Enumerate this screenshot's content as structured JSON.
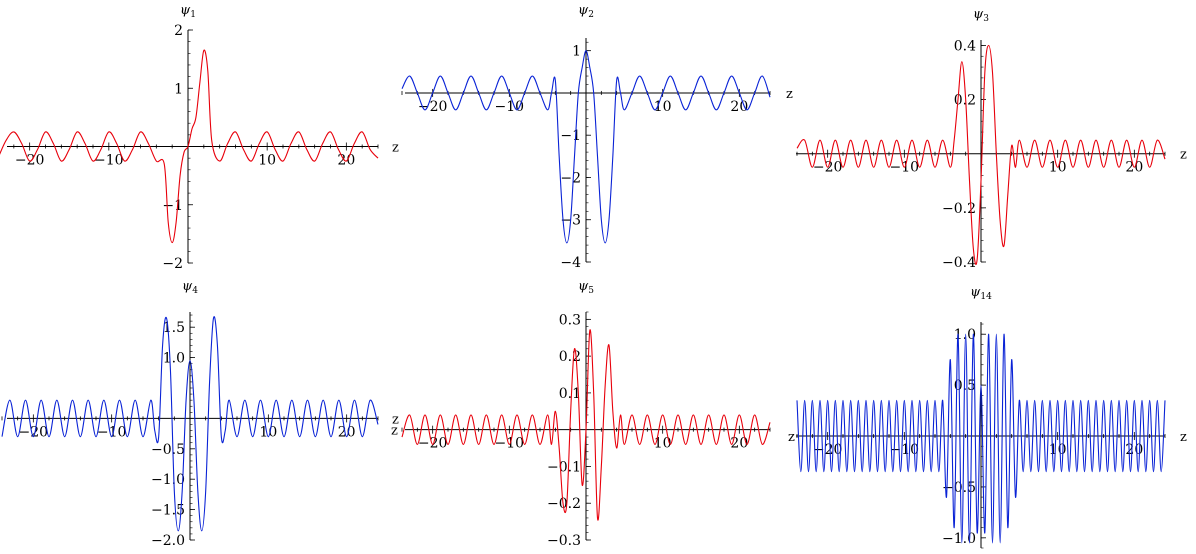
{
  "chart_data": [
    {
      "type": "line",
      "title": "ψ1",
      "xlabel": "z",
      "ylabel": "",
      "xlim": [
        -24,
        24
      ],
      "ylim": [
        -2,
        2
      ],
      "x_ticks": [
        -20,
        -10,
        10,
        20
      ],
      "x_tick_labels": [
        "−20",
        "−10",
        "10",
        "20"
      ],
      "y_ticks": [
        -2,
        -1,
        1,
        2
      ],
      "y_tick_labels": [
        "−2",
        "−1",
        "1",
        "2"
      ],
      "colors": {
        "line": "#e8000b"
      },
      "series": [
        {
          "name": "",
          "color": "#e8000b",
          "x": [
            -24,
            -23,
            -22,
            -21,
            -20,
            -19,
            -18,
            -17,
            -16,
            -15,
            -14,
            -13,
            -12,
            -11,
            -10,
            -9,
            -8,
            -7,
            -6,
            -5,
            -4,
            -3,
            -2.5,
            -2,
            -1.5,
            -1,
            -0.5,
            0,
            0.5,
            1,
            1.5,
            2,
            2.5,
            3,
            4,
            5,
            6,
            7,
            8,
            9,
            10,
            11,
            12,
            13,
            14,
            15,
            16,
            17,
            18,
            19,
            20,
            21,
            22,
            23,
            24
          ],
          "y": [
            -0.2,
            0.1,
            0.25,
            0.05,
            -0.25,
            -0.05,
            0.25,
            0.05,
            -0.25,
            -0.05,
            0.25,
            0.05,
            -0.25,
            -0.05,
            0.25,
            0.05,
            -0.25,
            -0.05,
            0.25,
            0.05,
            -0.25,
            -0.3,
            -1.3,
            -1.65,
            -1.3,
            -0.5,
            -0.1,
            0,
            0.3,
            0.5,
            1.1,
            1.65,
            1.3,
            0.1,
            -0.25,
            0.05,
            0.25,
            -0.05,
            -0.25,
            0.05,
            0.25,
            -0.05,
            -0.25,
            0.05,
            0.25,
            -0.05,
            -0.25,
            0.05,
            0.25,
            -0.05,
            -0.25,
            0.05,
            0.25,
            -0.05,
            -0.2
          ]
        }
      ]
    },
    {
      "type": "line",
      "title": "ψ2",
      "xlabel": "z",
      "ylabel": "",
      "xlim": [
        -24,
        24
      ],
      "ylim": [
        -4,
        1.3
      ],
      "x_ticks": [
        -20,
        -10,
        10,
        20
      ],
      "x_tick_labels": [
        "−20",
        "−10",
        "10",
        "20"
      ],
      "y_ticks": [
        -4,
        -3,
        -2,
        -1,
        1
      ],
      "y_tick_labels": [
        "−4",
        "−3",
        "−2",
        "−1",
        "1"
      ],
      "colors": {
        "line": "#0a23d6"
      },
      "series": [
        {
          "name": "",
          "color": "#0a23d6",
          "x": [
            -24,
            -23,
            -22,
            -21,
            -20,
            -19,
            -18,
            -17,
            -16,
            -15,
            -14,
            -13,
            -12,
            -11,
            -10,
            -9,
            -8,
            -7,
            -6,
            -5,
            -4.5,
            -4,
            -3.5,
            -3,
            -2.5,
            -2,
            -1.5,
            -1,
            -0.5,
            0,
            0.5,
            1,
            1.5,
            2,
            2.5,
            3,
            3.5,
            4,
            4.5,
            5,
            6,
            7,
            8,
            9,
            10,
            11,
            12,
            13,
            14,
            15,
            16,
            17,
            18,
            19,
            20,
            21,
            22,
            23,
            24
          ],
          "y": [
            0.1,
            0.4,
            0,
            -0.4,
            0,
            0.4,
            0,
            -0.4,
            0,
            0.4,
            0,
            -0.4,
            0,
            0.4,
            0,
            -0.4,
            0,
            0.4,
            0,
            -0.4,
            0,
            0.3,
            -1.5,
            -3,
            -3.55,
            -3,
            -1.5,
            0,
            0.6,
            1,
            0.6,
            0,
            -1.5,
            -3,
            -3.55,
            -3,
            -1.5,
            0.3,
            0,
            -0.4,
            0,
            0.4,
            0,
            -0.4,
            0,
            0.4,
            0,
            -0.4,
            0,
            0.4,
            0,
            -0.4,
            0,
            0.4,
            0,
            -0.4,
            0,
            0.4,
            -0.1
          ]
        }
      ]
    },
    {
      "type": "line",
      "title": "ψ3",
      "xlabel": "z",
      "ylabel": "",
      "xlim": [
        -24,
        24
      ],
      "ylim": [
        -0.4,
        0.42
      ],
      "x_ticks": [
        -20,
        -10,
        10,
        20
      ],
      "x_tick_labels": [
        "−20",
        "−10",
        "10",
        "20"
      ],
      "y_ticks": [
        -0.4,
        -0.2,
        0.2,
        0.4
      ],
      "y_tick_labels": [
        "−0.4",
        "−0.2",
        "0.2",
        "0.4"
      ],
      "colors": {
        "line": "#e8000b"
      },
      "series": [
        {
          "name": "",
          "color": "#e8000b",
          "x": [
            -24,
            -23,
            -22,
            -21,
            -20,
            -19,
            -18,
            -17,
            -16,
            -15,
            -14,
            -13,
            -12,
            -11,
            -10,
            -9,
            -8,
            -7,
            -6,
            -5,
            -4,
            -3.5,
            -3,
            -2.5,
            -2,
            -1.5,
            -1,
            -0.5,
            0,
            0.5,
            1,
            1.5,
            2,
            2.5,
            3,
            3.5,
            4,
            4.5,
            5,
            6,
            7,
            8,
            9,
            10,
            11,
            12,
            13,
            14,
            15,
            16,
            17,
            18,
            19,
            20,
            21,
            22,
            23,
            24
          ],
          "y": [
            0.02,
            0.05,
            -0.05,
            0.05,
            -0.05,
            0.05,
            -0.05,
            0.05,
            -0.05,
            0.05,
            -0.05,
            0.05,
            -0.05,
            0.05,
            -0.05,
            0.05,
            -0.05,
            0.05,
            -0.05,
            0.05,
            -0.05,
            0.05,
            0.2,
            0.34,
            0.2,
            -0.1,
            -0.35,
            -0.39,
            -0.1,
            0.3,
            0.4,
            0.3,
            0,
            -0.25,
            -0.34,
            -0.15,
            0.03,
            -0.05,
            0.05,
            -0.05,
            0.05,
            -0.05,
            0.05,
            -0.05,
            0.05,
            -0.05,
            0.05,
            -0.05,
            0.05,
            -0.05,
            0.05,
            -0.05,
            0.05,
            -0.05,
            0.05,
            -0.05,
            0.05,
            -0.02
          ]
        }
      ]
    },
    {
      "type": "line",
      "title": "ψ4",
      "xlabel": "z",
      "ylabel": "",
      "xlim": [
        -24,
        24
      ],
      "ylim": [
        -2,
        1.75
      ],
      "x_ticks": [
        -20,
        -10,
        10,
        20
      ],
      "x_tick_labels": [
        "−20",
        "−10",
        "10",
        "20"
      ],
      "y_ticks": [
        -2,
        -1.5,
        -1,
        -0.5,
        1,
        1.5
      ],
      "y_tick_labels": [
        "−2.0",
        "−1.5",
        "−1.0",
        "−0.5",
        "1.0",
        "1.5"
      ],
      "colors": {
        "line": "#0a23d6"
      },
      "series": [
        {
          "name": "",
          "color": "#0a23d6",
          "x": [
            -24,
            -23,
            -22,
            -21,
            -20,
            -19,
            -18,
            -17,
            -16,
            -15,
            -14,
            -13,
            -12,
            -11,
            -10,
            -9,
            -8,
            -7,
            -6,
            -5,
            -4.5,
            -4,
            -3.5,
            -3,
            -2.5,
            -2,
            -1.5,
            -1,
            -0.5,
            0,
            0.5,
            1,
            1.5,
            2,
            2.5,
            3,
            3.5,
            4,
            4.5,
            5,
            6,
            7,
            8,
            9,
            10,
            11,
            12,
            13,
            14,
            15,
            16,
            17,
            18,
            19,
            20,
            21,
            22,
            23,
            24
          ],
          "y": [
            -0.3,
            0.3,
            -0.3,
            0.3,
            -0.3,
            0.3,
            -0.3,
            0.3,
            -0.3,
            0.3,
            -0.3,
            0.3,
            -0.3,
            0.3,
            -0.3,
            0.3,
            -0.3,
            0.3,
            -0.3,
            0.3,
            -0.2,
            -0.3,
            1.2,
            1.65,
            0.8,
            -1.2,
            -1.85,
            -1.2,
            0.3,
            0.95,
            0.3,
            -1.2,
            -1.85,
            -1.2,
            0.6,
            1.65,
            1.2,
            -0.3,
            -0.2,
            0.3,
            -0.3,
            0.3,
            -0.3,
            0.3,
            -0.3,
            0.3,
            -0.3,
            0.3,
            -0.3,
            0.3,
            -0.3,
            0.3,
            -0.3,
            0.3,
            -0.3,
            0.3,
            -0.3,
            0.3,
            -0.1
          ]
        }
      ]
    },
    {
      "type": "line",
      "title": "ψ5",
      "xlabel": "z",
      "ylabel": "",
      "xlim": [
        -24,
        24
      ],
      "ylim": [
        -0.3,
        0.32
      ],
      "x_ticks": [
        -20,
        -10,
        10,
        20
      ],
      "x_tick_labels": [
        "−20",
        "−10",
        "10",
        "20"
      ],
      "y_ticks": [
        -0.3,
        -0.2,
        -0.1,
        0.1,
        0.2,
        0.3
      ],
      "y_tick_labels": [
        "−0.3",
        "−0.2",
        "−0.1",
        "0.1",
        "0.2",
        "0.3"
      ],
      "colors": {
        "line": "#e8000b"
      },
      "series": [
        {
          "name": "",
          "color": "#e8000b",
          "x": [
            -24,
            -23,
            -22,
            -21,
            -20,
            -19,
            -18,
            -17,
            -16,
            -15,
            -14,
            -13,
            -12,
            -11,
            -10,
            -9,
            -8,
            -7,
            -6,
            -5,
            -4.5,
            -4,
            -3.5,
            -3,
            -2.5,
            -2,
            -1.5,
            -1,
            -0.5,
            0,
            0.5,
            1,
            1.5,
            2,
            2.5,
            3,
            3.5,
            4,
            4.5,
            5,
            6,
            7,
            8,
            9,
            10,
            11,
            12,
            13,
            14,
            15,
            16,
            17,
            18,
            19,
            20,
            21,
            22,
            23,
            24
          ],
          "y": [
            -0.02,
            0.04,
            -0.04,
            0.04,
            -0.04,
            0.04,
            -0.04,
            0.04,
            -0.04,
            0.04,
            -0.04,
            0.04,
            -0.04,
            0.04,
            -0.04,
            0.04,
            -0.04,
            0.04,
            -0.04,
            0.04,
            -0.04,
            0.05,
            -0.05,
            -0.2,
            -0.2,
            0.05,
            0.22,
            0.1,
            -0.15,
            0,
            0.27,
            0.1,
            -0.24,
            -0.1,
            0.12,
            0.23,
            0.05,
            -0.05,
            0.04,
            -0.04,
            0.04,
            -0.04,
            0.04,
            -0.04,
            0.04,
            -0.04,
            0.04,
            -0.04,
            0.04,
            -0.04,
            0.04,
            -0.04,
            0.04,
            -0.04,
            0.04,
            -0.04,
            0.04,
            -0.04,
            0.02
          ]
        }
      ]
    },
    {
      "type": "line",
      "title": "ψ14",
      "xlabel": "z",
      "ylabel": "",
      "xlim": [
        -24,
        24
      ],
      "ylim": [
        -1.1,
        1.12
      ],
      "x_ticks": [
        -20,
        -10,
        10,
        20
      ],
      "x_tick_labels": [
        "−20",
        "−10",
        "10",
        "20"
      ],
      "y_ticks": [
        -1,
        -0.5,
        0.5,
        1
      ],
      "y_tick_labels": [
        "−1.0",
        "−0.5",
        "0.5",
        "1.0"
      ],
      "colors": {
        "line": "#0a23d6"
      },
      "series": [
        {
          "name": "",
          "color": "#0a23d6",
          "x": [
            -24,
            -23.5,
            -23,
            -22.5,
            -22,
            -21.5,
            -21,
            -20.5,
            -20,
            -19.5,
            -19,
            -18.5,
            -18,
            -17.5,
            -17,
            -16.5,
            -16,
            -15.5,
            -15,
            -14.5,
            -14,
            -13.5,
            -13,
            -12.5,
            -12,
            -11.5,
            -11,
            -10.5,
            -10,
            -9.5,
            -9,
            -8.5,
            -8,
            -7.5,
            -7,
            -6.5,
            -6,
            -5.5,
            -5,
            -4.5,
            -4,
            -3.5,
            -3,
            -2.5,
            -2,
            -1.5,
            -1,
            -0.5,
            0,
            0.5,
            1,
            1.5,
            2,
            2.5,
            3,
            3.5,
            4,
            4.5,
            5,
            5.5,
            6,
            6.5,
            7,
            7.5,
            8,
            8.5,
            9,
            9.5,
            10,
            10.5,
            11,
            11.5,
            12,
            12.5,
            13,
            13.5,
            14,
            14.5,
            15,
            15.5,
            16,
            16.5,
            17,
            17.5,
            18,
            18.5,
            19,
            19.5,
            20,
            20.5,
            21,
            21.5,
            22,
            22.5,
            23,
            23.5,
            24
          ],
          "y": [
            0.35,
            -0.35,
            0.35,
            -0.35,
            0.35,
            -0.35,
            0.35,
            -0.35,
            0.35,
            -0.35,
            0.35,
            -0.35,
            0.35,
            -0.35,
            0.35,
            -0.35,
            0.35,
            -0.35,
            0.35,
            -0.35,
            0.35,
            -0.35,
            0.35,
            -0.35,
            0.35,
            -0.35,
            0.35,
            -0.35,
            0.35,
            -0.35,
            0.35,
            -0.35,
            0.35,
            -0.35,
            0.35,
            -0.35,
            0.35,
            -0.35,
            0.35,
            -0.6,
            0.75,
            -0.9,
            1.0,
            -1.05,
            1.0,
            -1.05,
            1.0,
            -0.95,
            0.5,
            -0.95,
            1.0,
            -1.05,
            1.0,
            -1.05,
            1.0,
            -0.9,
            0.75,
            -0.6,
            0.35,
            -0.35,
            0.35,
            -0.35,
            0.35,
            -0.35,
            0.35,
            -0.35,
            0.35,
            -0.35,
            0.35,
            -0.35,
            0.35,
            -0.35,
            0.35,
            -0.35,
            0.35,
            -0.35,
            0.35,
            -0.35,
            0.35,
            -0.35,
            0.35,
            -0.35,
            0.35,
            -0.35,
            0.35,
            -0.35,
            0.35,
            -0.35,
            0.35,
            -0.35,
            0.35,
            -0.35,
            0.35,
            -0.35,
            0.35,
            -0.35,
            0.35
          ]
        }
      ]
    }
  ]
}
